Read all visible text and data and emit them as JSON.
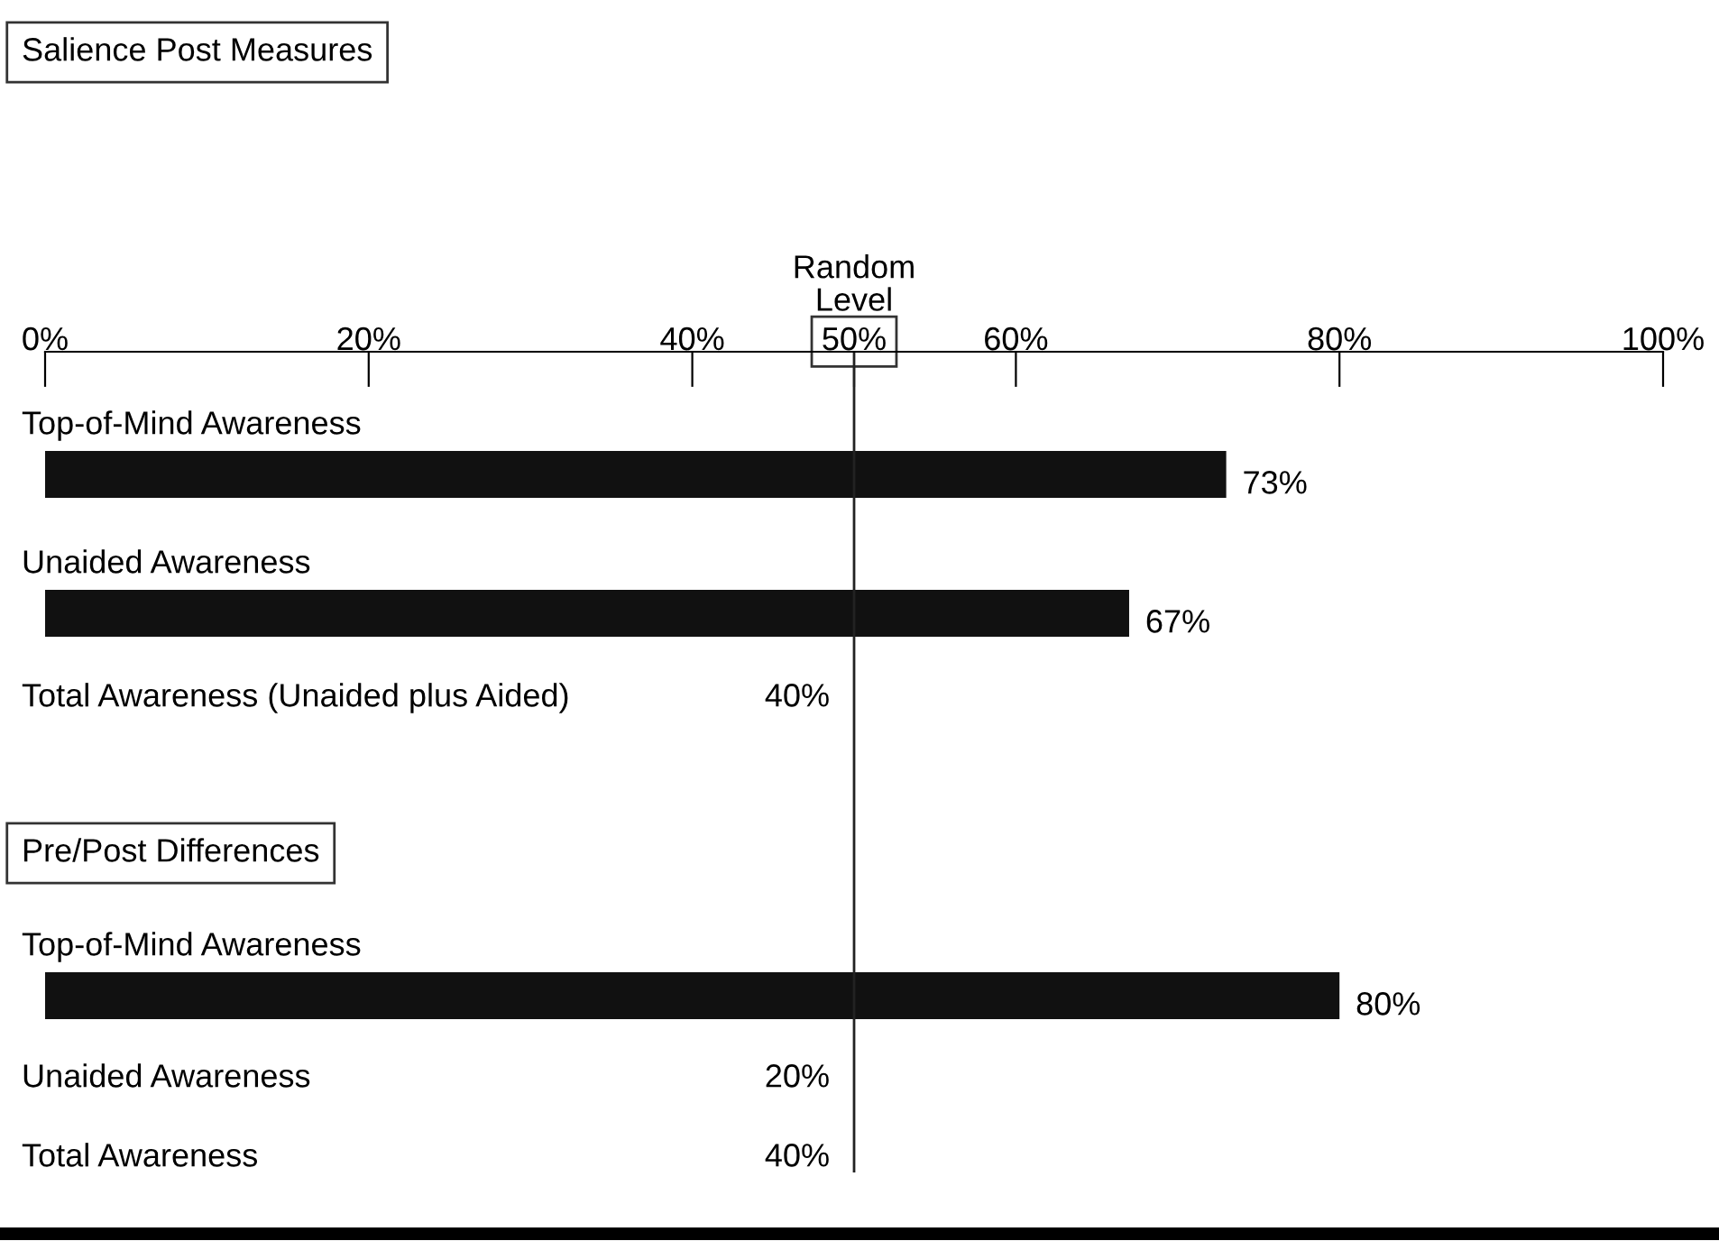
{
  "chart_data": {
    "type": "bar",
    "orientation": "horizontal",
    "categories": [
      "Top-of-Mind Awareness",
      "Unaided Awareness",
      "Total Awareness (Unaided plus Aided)",
      "Top-of-Mind Awareness",
      "Unaided Awareness",
      "Total Awareness"
    ],
    "values": [
      73,
      67,
      null,
      80,
      null,
      null
    ],
    "value_labels": [
      "73%",
      "67%",
      "40%",
      "80%",
      "20%",
      "40%"
    ],
    "color": "#111111",
    "xlim": [
      0,
      100
    ],
    "xticks": [
      {
        "value": 0,
        "label": "0%"
      },
      {
        "value": 20,
        "label": "20%"
      },
      {
        "value": 40,
        "label": "40%"
      },
      {
        "value": 50,
        "label": "50%"
      },
      {
        "value": 60,
        "label": "60%"
      },
      {
        "value": 80,
        "label": "80%"
      },
      {
        "value": 100,
        "label": "100%"
      }
    ],
    "ref_lines": [
      {
        "axis": "x",
        "value": 50,
        "label": "Random\nLevel",
        "color": "#222222"
      }
    ],
    "annotations": [
      "Salience Post Measures",
      "Pre/Post Differences"
    ]
  }
}
